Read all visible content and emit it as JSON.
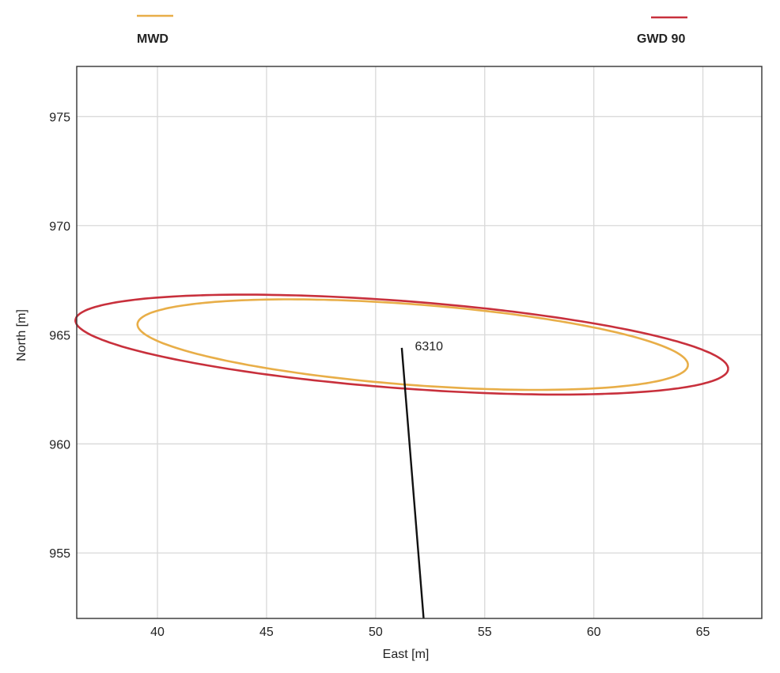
{
  "chart_data": {
    "type": "line",
    "title": "",
    "xlabel": "East [m]",
    "ylabel": "North [m]",
    "xlim": [
      36.3,
      67.7
    ],
    "ylim": [
      952.0,
      977.3
    ],
    "xticks": [
      40,
      45,
      50,
      55,
      60,
      65
    ],
    "yticks": [
      955,
      960,
      965,
      970,
      975
    ],
    "grid": true,
    "legend_placement": "top",
    "series": [
      {
        "name": "MWD",
        "color": "#e8ae48",
        "shape": "ellipse",
        "center": [
          51.7,
          964.55
        ],
        "semi_major": 12.65,
        "semi_minor": 1.85,
        "rotation_deg": -4.3
      },
      {
        "name": "GWD 90",
        "color": "#c8303c",
        "shape": "ellipse",
        "center": [
          51.2,
          964.55
        ],
        "semi_major": 15.0,
        "semi_minor": 2.0,
        "rotation_deg": -4.3
      },
      {
        "name": "",
        "color": "#111111",
        "shape": "line",
        "x": [
          51.2,
          52.2
        ],
        "y": [
          964.4,
          952.0
        ]
      }
    ],
    "annotations": [
      {
        "text": "6310",
        "x": 51.8,
        "y": 964.5
      }
    ]
  }
}
